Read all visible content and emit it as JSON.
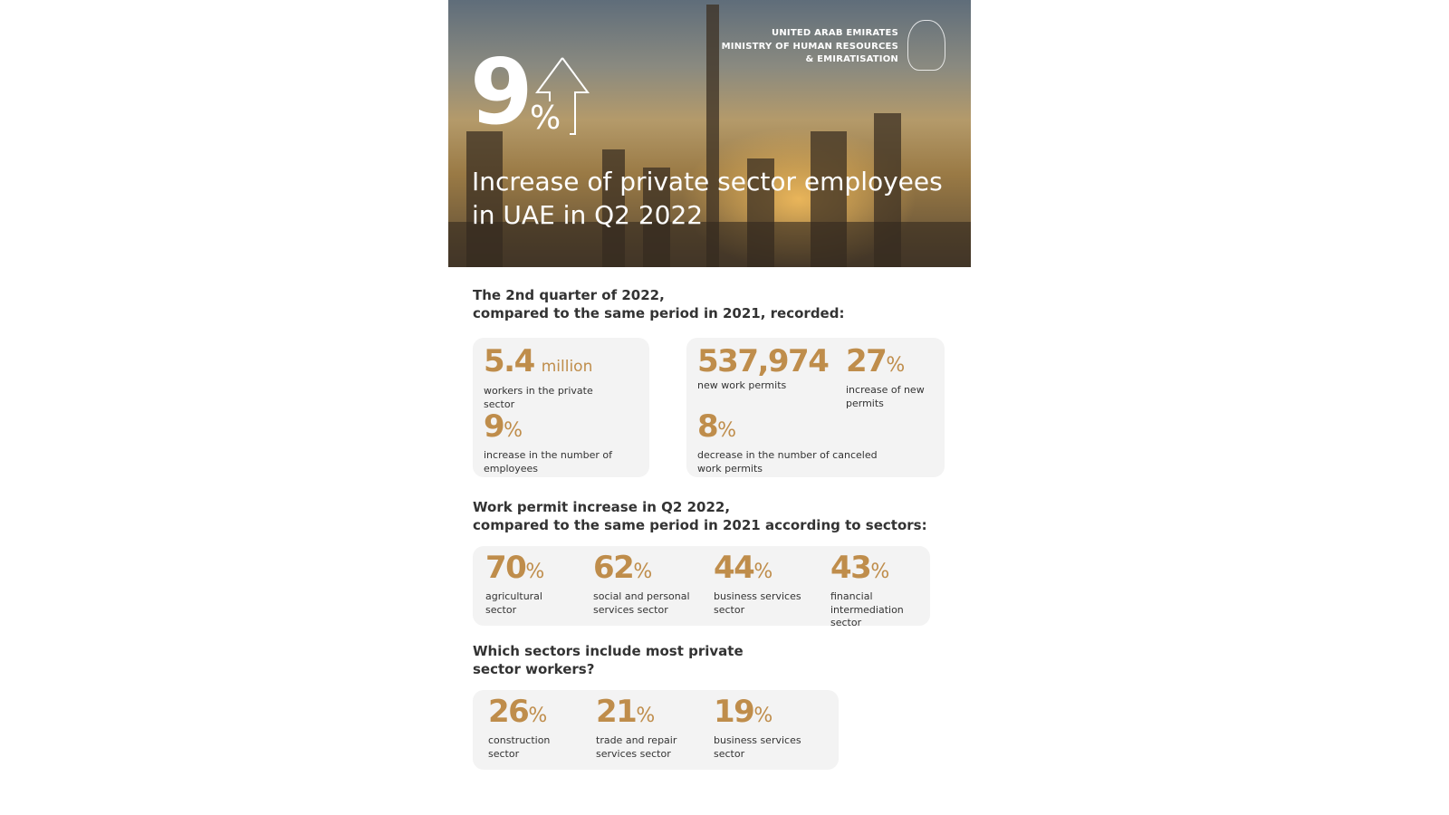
{
  "header": {
    "ministry_lines": [
      "UNITED ARAB EMIRATES",
      "MINISTRY OF HUMAN RESOURCES",
      "& EMIRATISATION"
    ],
    "headline_value": "9",
    "headline_unit": "%",
    "title": "Increase of private sector employees in UAE in Q2 2022"
  },
  "section1": {
    "heading_line1": "The 2nd quarter of 2022,",
    "heading_line2": "compared to the same period in 2021, recorded:",
    "card1": [
      {
        "value": "5.4",
        "unit": "million",
        "label": "workers in the private sector"
      },
      {
        "value": "9",
        "unit": "%",
        "label": "increase in the number of employees"
      }
    ],
    "card2": [
      {
        "value": "537,974",
        "unit": "",
        "label": "new work permits"
      },
      {
        "value": "27",
        "unit": "%",
        "label": "increase of new permits"
      },
      {
        "value": "8",
        "unit": "%",
        "label": "decrease in the number of canceled work permits"
      }
    ]
  },
  "section2": {
    "heading_line1": "Work permit increase in Q2 2022,",
    "heading_line2": "compared to the same period in 2021 according to sectors:",
    "items": [
      {
        "value": "70",
        "unit": "%",
        "label": "agricultural sector"
      },
      {
        "value": "62",
        "unit": "%",
        "label": "social and personal services sector"
      },
      {
        "value": "44",
        "unit": "%",
        "label": "business services sector"
      },
      {
        "value": "43",
        "unit": "%",
        "label": "financial intermediation sector"
      }
    ]
  },
  "section3": {
    "heading_line1": "Which sectors include most private",
    "heading_line2": "sector workers?",
    "items": [
      {
        "value": "26",
        "unit": "%",
        "label": "construction sector"
      },
      {
        "value": "21",
        "unit": "%",
        "label": "trade and repair services sector"
      },
      {
        "value": "19",
        "unit": "%",
        "label": "business services sector"
      }
    ]
  },
  "colors": {
    "accent": "#bf8d4b",
    "card": "#f3f3f3"
  }
}
